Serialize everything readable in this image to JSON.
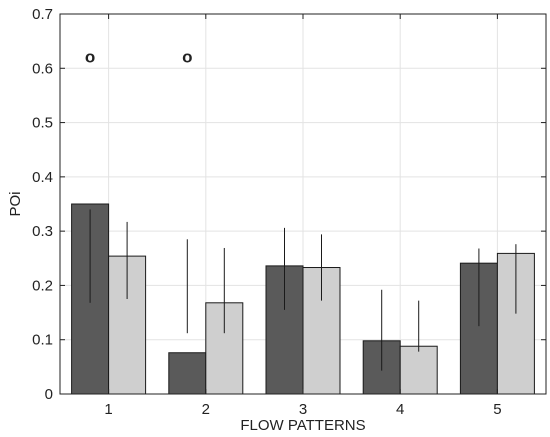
{
  "chart_data": {
    "type": "bar",
    "title": "",
    "xlabel": "FLOW PATTERNS",
    "ylabel": "POi",
    "categories": [
      "1",
      "2",
      "3",
      "4",
      "5"
    ],
    "ylim": [
      0,
      0.7
    ],
    "yticks": [
      "0",
      "0.1",
      "0.2",
      "0.3",
      "0.4",
      "0.5",
      "0.6",
      "0.7"
    ],
    "grid": true,
    "legend": "none",
    "series": [
      {
        "color": "#5a5a5a",
        "values": [
          0.35,
          0.076,
          0.236,
          0.098,
          0.241
        ],
        "error_low": [
          0.168,
          0.112,
          0.155,
          0.043,
          0.125
        ],
        "error_high": [
          0.34,
          0.285,
          0.306,
          0.192,
          0.268
        ]
      },
      {
        "color": "#cfcfcf",
        "values": [
          0.254,
          0.168,
          0.233,
          0.088,
          0.259
        ],
        "error_low": [
          0.175,
          0.112,
          0.172,
          0.078,
          0.148
        ],
        "error_high": [
          0.317,
          0.269,
          0.294,
          0.172,
          0.276
        ]
      }
    ],
    "annotations": [
      {
        "text": "o",
        "category": "1",
        "series": 0,
        "y": 0.622
      },
      {
        "text": "o",
        "category": "2",
        "series": 0,
        "y": 0.622
      }
    ]
  }
}
